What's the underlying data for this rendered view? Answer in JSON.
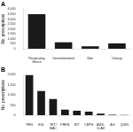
{
  "chart_data": [
    {
      "type": "bar",
      "title": "A",
      "categories": [
        "Respiratory\nillness",
        "Gastrointestinal",
        "Skin",
        "Urinary"
      ],
      "values": [
        3500,
        650,
        250,
        550
      ],
      "color": "#1a1a1a",
      "ylabel": "No. prescriptions",
      "ylim": [
        0,
        4000
      ],
      "yticks": [
        0,
        500,
        {
          "value": 1000,
          "label": "1,000"
        },
        {
          "value": 1500,
          "label": "1,500"
        },
        {
          "value": 2000,
          "label": "2,000"
        },
        {
          "value": 2500,
          "label": "2,500"
        },
        {
          "value": 3000,
          "label": "3,000"
        },
        {
          "value": 3500,
          "label": "3,500"
        },
        {
          "value": 4000,
          "label": "4,000"
        }
      ],
      "grid": false
    },
    {
      "type": "bar",
      "title": "B",
      "categories": [
        "PEN",
        "SUL",
        "TET/\nMAC",
        "PHEN",
        "NIT",
        "CEPH",
        "AMX-\nCLAV",
        "AG",
        "QUIN"
      ],
      "values": [
        2000,
        1200,
        800,
        275,
        220,
        175,
        75,
        25,
        10
      ],
      "color": "#1a1a1a",
      "ylabel": "No. prescriptions",
      "ylim": [
        0,
        2000
      ],
      "yticks": [
        0,
        500,
        {
          "value": 1000,
          "label": "1,000"
        },
        {
          "value": 1500,
          "label": "1,500"
        },
        {
          "value": 2000,
          "label": "2,000"
        }
      ],
      "grid": false
    }
  ]
}
